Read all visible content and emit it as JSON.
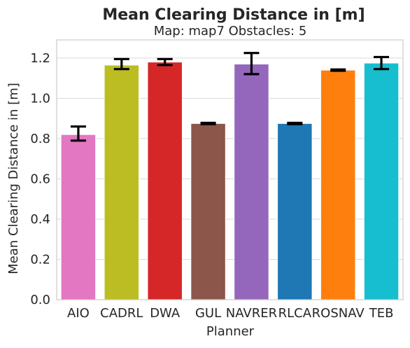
{
  "chart_data": {
    "type": "bar",
    "title": "Mean Clearing Distance in [m]",
    "subtitle": "Map: map7 Obstacles: 5",
    "xlabel": "Planner",
    "ylabel": "Mean Clearing Distance in [m]",
    "ylim": [
      0,
      1.29
    ],
    "yticks": [
      "0.0",
      "0.2",
      "0.4",
      "0.6",
      "0.8",
      "1.0",
      "1.2"
    ],
    "grid": true,
    "categories": [
      "AIO",
      "CADRL",
      "DWA",
      "GUL",
      "NAVRER",
      "RLCA",
      "ROSNAV",
      "TEB"
    ],
    "values": [
      0.82,
      1.165,
      1.18,
      0.875,
      1.17,
      0.875,
      1.14,
      1.175
    ],
    "errors": [
      [
        0.79,
        0.86
      ],
      [
        1.145,
        1.195
      ],
      [
        1.165,
        1.195
      ],
      [
        0.872,
        0.878
      ],
      [
        1.12,
        1.225
      ],
      [
        0.872,
        0.878
      ],
      [
        1.137,
        1.143
      ],
      [
        1.145,
        1.205
      ]
    ],
    "colors": [
      "#e377c2",
      "#bcbd22",
      "#d62728",
      "#8c564b",
      "#9467bd",
      "#1f77b4",
      "#ff7f0e",
      "#17becf"
    ]
  }
}
